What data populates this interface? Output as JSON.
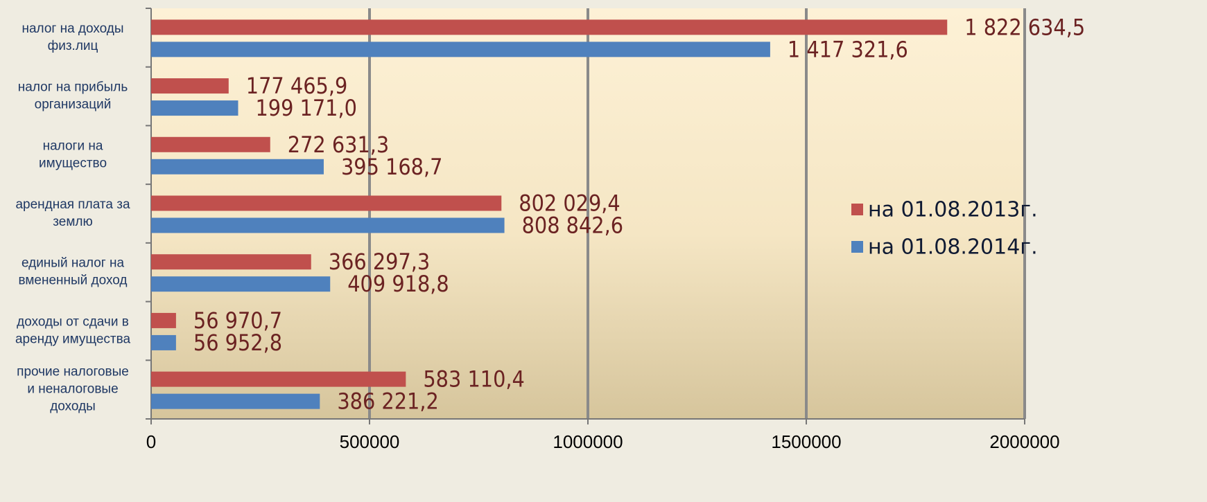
{
  "chart_data": {
    "type": "hbar",
    "categories": [
      [
        "налог на доходы",
        "физ.лиц"
      ],
      [
        "налог на прибыль",
        "организаций"
      ],
      [
        "налоги на",
        "имущество"
      ],
      [
        "арендная плата за",
        "землю"
      ],
      [
        "единый налог на",
        "вмененный доход"
      ],
      [
        "доходы от сдачи в",
        "аренду имущества"
      ],
      [
        "прочие налоговые",
        "и неналоговые",
        "доходы"
      ]
    ],
    "series": [
      {
        "name": "на 01.08.2013г.",
        "color": "#c0504d",
        "values": [
          1822634.5,
          177465.9,
          272631.3,
          802029.4,
          366297.3,
          56970.7,
          583110.4
        ],
        "value_labels": [
          "1 822 634,5",
          "177 465,9",
          "272 631,3",
          "802 029,4",
          "366 297,3",
          "56 970,7",
          "583 110,4"
        ]
      },
      {
        "name": "на 01.08.2014г.",
        "color": "#4f81bd",
        "values": [
          1417321.6,
          199171.0,
          395168.7,
          808842.6,
          409918.8,
          56952.8,
          386221.2
        ],
        "value_labels": [
          "1 417 321,6",
          "199 171,0",
          "395 168,7",
          "808 842,6",
          "409 918,8",
          "56 952,8",
          "386 221,2"
        ]
      }
    ],
    "xlim": [
      0,
      2000000
    ],
    "xticks": [
      0,
      500000,
      1000000,
      1500000,
      2000000
    ],
    "grid": true,
    "legend": "right"
  }
}
